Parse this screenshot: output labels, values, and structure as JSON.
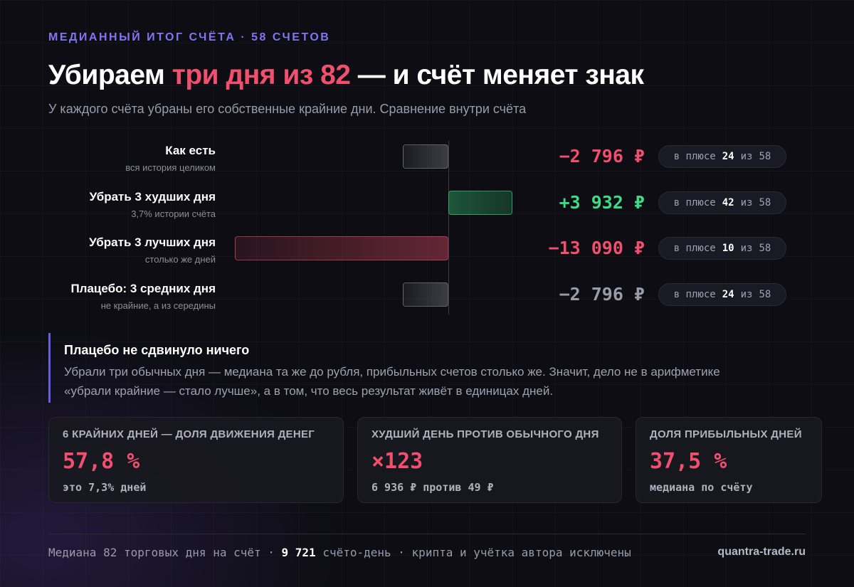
{
  "header": {
    "kicker": "МЕДИАННЫЙ ИТОГ СЧЁТА · 58 СЧЕТОВ",
    "title_start": "Убираем ",
    "title_highlight": "три дня из 82",
    "title_end": " — и счёт меняет знак",
    "subtitle": "У каждого счёта убраны его собственные крайние дни. Сравнение внутри счёта"
  },
  "rows": [
    {
      "label": "Как есть",
      "sub": "вся история целиком",
      "value": -2796,
      "value_label": "−2 796 ₽",
      "color": "#f0506e",
      "bar_color": "#8a8a99",
      "plus_label": "в плюсе",
      "plus": 24,
      "of_label": "из",
      "total": 58
    },
    {
      "label": "Убрать 3 худших дня",
      "sub": "3,7% истории счёта",
      "value": 3932,
      "value_label": "+3 932 ₽",
      "color": "#3ddc84",
      "bar_color": "#3ddc84",
      "plus_label": "в плюсе",
      "plus": 42,
      "of_label": "из",
      "total": 58
    },
    {
      "label": "Убрать 3 лучших дня",
      "sub": "столько же дней",
      "value": -13090,
      "value_label": "−13 090 ₽",
      "color": "#f0506e",
      "bar_color": "#f0506e",
      "plus_label": "в плюсе",
      "plus": 10,
      "of_label": "из",
      "total": 58
    },
    {
      "label": "Плацебо: 3 средних дня",
      "sub": "не крайние, а из середины",
      "value": -2796,
      "value_label": "−2 796 ₽",
      "color": "#9a9aab",
      "bar_color": "#8a8a99",
      "plus_label": "в плюсе",
      "plus": 24,
      "of_label": "из",
      "total": 58
    }
  ],
  "callout": {
    "title": "Плацебо не сдвинуло ничего",
    "text": "Убрали три обычных дня — медиана та же до рубля, прибыльных счетов столько же. Значит, дело не в арифметике «убрали крайние — стало лучше», а в том, что весь результат живёт в единицах дней."
  },
  "cards": [
    {
      "label": "6 КРАЙНИХ ДНЕЙ — ДОЛЯ ДВИЖЕНИЯ ДЕНЕГ",
      "value": "57,8 %",
      "note": "это 7,3% дней"
    },
    {
      "label": "ХУДШИЙ ДЕНЬ ПРОТИВ ОБЫЧНОГО ДНЯ",
      "value": "×123",
      "note": "6 936 ₽ против 49 ₽"
    },
    {
      "label": "ДОЛЯ ПРИБЫЛЬНЫХ ДНЕЙ",
      "value": "37,5 %",
      "note": "медиана по счёту"
    }
  ],
  "footer": {
    "text_start": "Медиана 82 торговых дня на счёт · ",
    "bold": "9 721",
    "text_end": " счёто-день · крипта и учётка автора исключены",
    "site": "quantra-trade.ru"
  }
}
